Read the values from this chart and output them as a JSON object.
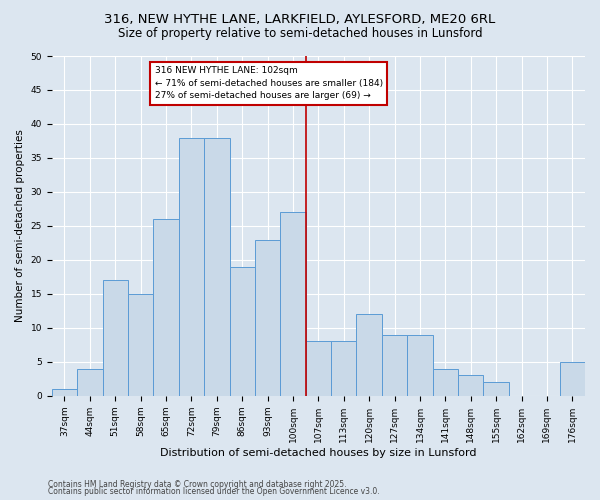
{
  "title1": "316, NEW HYTHE LANE, LARKFIELD, AYLESFORD, ME20 6RL",
  "title2": "Size of property relative to semi-detached houses in Lunsford",
  "xlabel": "Distribution of semi-detached houses by size in Lunsford",
  "ylabel": "Number of semi-detached properties",
  "categories": [
    "37sqm",
    "44sqm",
    "51sqm",
    "58sqm",
    "65sqm",
    "72sqm",
    "79sqm",
    "86sqm",
    "93sqm",
    "100sqm",
    "107sqm",
    "113sqm",
    "120sqm",
    "127sqm",
    "134sqm",
    "141sqm",
    "148sqm",
    "155sqm",
    "162sqm",
    "169sqm",
    "176sqm"
  ],
  "values": [
    1,
    4,
    17,
    15,
    26,
    38,
    38,
    19,
    23,
    27,
    8,
    8,
    12,
    9,
    9,
    4,
    3,
    2,
    0,
    0,
    5
  ],
  "bar_color": "#c9d9e8",
  "bar_edge_color": "#5b9bd5",
  "vline_x_index": 9,
  "vline_color": "#c00000",
  "annotation_text": "316 NEW HYTHE LANE: 102sqm\n← 71% of semi-detached houses are smaller (184)\n27% of semi-detached houses are larger (69) →",
  "annotation_box_color": "#ffffff",
  "annotation_box_edge": "#c00000",
  "ylim": [
    0,
    50
  ],
  "yticks": [
    0,
    5,
    10,
    15,
    20,
    25,
    30,
    35,
    40,
    45,
    50
  ],
  "bg_color": "#dce6f0",
  "plot_bg_color": "#dce6f0",
  "grid_color": "#ffffff",
  "footer1": "Contains HM Land Registry data © Crown copyright and database right 2025.",
  "footer2": "Contains public sector information licensed under the Open Government Licence v3.0.",
  "title1_fontsize": 9.5,
  "title2_fontsize": 8.5,
  "xlabel_fontsize": 8,
  "ylabel_fontsize": 7.5,
  "tick_fontsize": 6.5,
  "footer_fontsize": 5.5,
  "annot_fontsize": 6.5
}
